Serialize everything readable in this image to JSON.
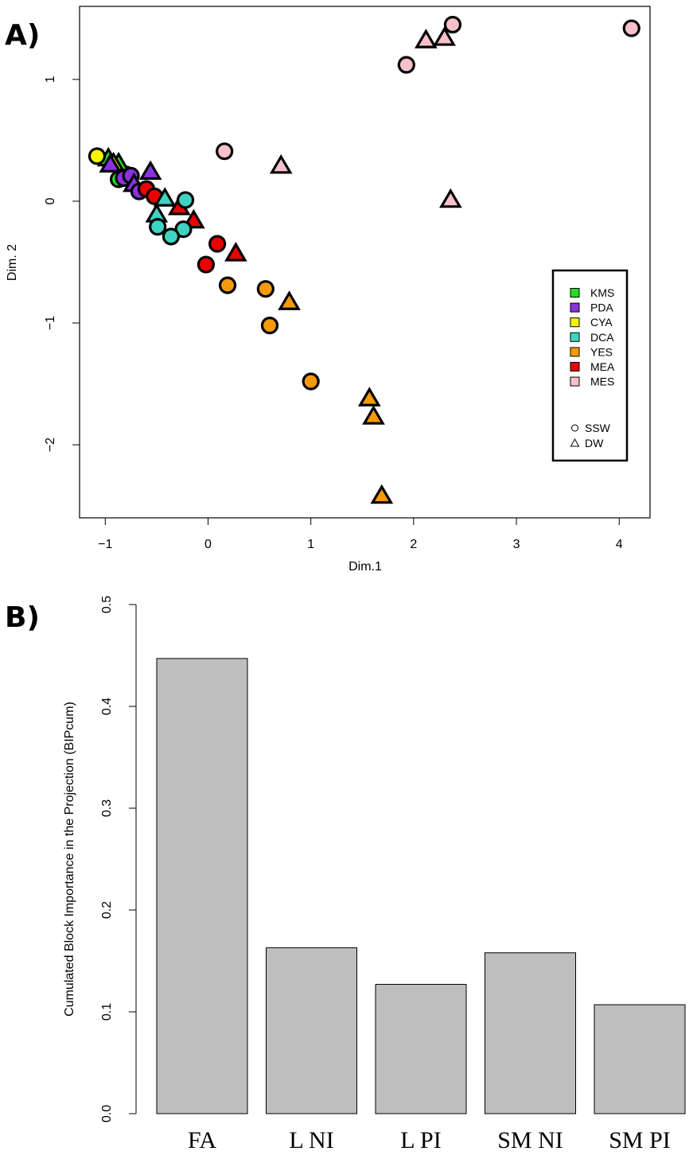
{
  "panels": {
    "a": "A)",
    "b": "B)"
  },
  "chart_data": [
    {
      "type": "scatter",
      "xlabel": "Dim.1",
      "ylabel": "Dim. 2",
      "xlim": [
        -1.25,
        4.3
      ],
      "ylim": [
        -2.6,
        1.6
      ],
      "xticks": [
        -1,
        0,
        1,
        2,
        3,
        4
      ],
      "xtick_labels": [
        "−1",
        "0",
        "1",
        "2",
        "3",
        "4"
      ],
      "yticks": [
        -2,
        -1,
        0,
        1
      ],
      "ytick_labels": [
        "−2",
        "−1",
        "0",
        "1"
      ],
      "grid": false,
      "legend_position": "right",
      "group_legend": [
        {
          "name": "KMS",
          "color": "#22dd22"
        },
        {
          "name": "PDA",
          "color": "#8833dd"
        },
        {
          "name": "CYA",
          "color": "#f5f500"
        },
        {
          "name": "DCA",
          "color": "#3fd3c3"
        },
        {
          "name": "YES",
          "color": "#f59a0a"
        },
        {
          "name": "MEA",
          "color": "#ee0000"
        },
        {
          "name": "MES",
          "color": "#f8c0c8"
        }
      ],
      "shape_legend": [
        {
          "name": "SSW",
          "shape": "circle"
        },
        {
          "name": "DW",
          "shape": "triangle"
        }
      ],
      "points": [
        {
          "group": "KMS",
          "shape": "circle",
          "x": -0.87,
          "y": 0.18
        },
        {
          "group": "KMS",
          "shape": "circle",
          "x": -0.8,
          "y": 0.22
        },
        {
          "group": "KMS",
          "shape": "triangle",
          "x": -0.97,
          "y": 0.35
        },
        {
          "group": "KMS",
          "shape": "triangle",
          "x": -0.87,
          "y": 0.31
        },
        {
          "group": "CYA",
          "shape": "circle",
          "x": -1.08,
          "y": 0.37
        },
        {
          "group": "CYA",
          "shape": "triangle",
          "x": -0.92,
          "y": 0.31
        },
        {
          "group": "PDA",
          "shape": "triangle",
          "x": -0.95,
          "y": 0.3
        },
        {
          "group": "PDA",
          "shape": "circle",
          "x": -0.82,
          "y": 0.19
        },
        {
          "group": "PDA",
          "shape": "circle",
          "x": -0.75,
          "y": 0.21
        },
        {
          "group": "PDA",
          "shape": "triangle",
          "x": -0.72,
          "y": 0.14
        },
        {
          "group": "PDA",
          "shape": "circle",
          "x": -0.67,
          "y": 0.08
        },
        {
          "group": "PDA",
          "shape": "triangle",
          "x": -0.56,
          "y": 0.24
        },
        {
          "group": "MEA",
          "shape": "circle",
          "x": -0.6,
          "y": 0.1
        },
        {
          "group": "MEA",
          "shape": "circle",
          "x": -0.52,
          "y": 0.04
        },
        {
          "group": "MEA",
          "shape": "triangle",
          "x": -0.28,
          "y": -0.05
        },
        {
          "group": "MEA",
          "shape": "triangle",
          "x": -0.14,
          "y": -0.16
        },
        {
          "group": "MEA",
          "shape": "circle",
          "x": 0.09,
          "y": -0.35
        },
        {
          "group": "MEA",
          "shape": "triangle",
          "x": 0.27,
          "y": -0.43
        },
        {
          "group": "MEA",
          "shape": "circle",
          "x": -0.02,
          "y": -0.52
        },
        {
          "group": "DCA",
          "shape": "triangle",
          "x": -0.42,
          "y": 0.02
        },
        {
          "group": "DCA",
          "shape": "circle",
          "x": -0.22,
          "y": 0.01
        },
        {
          "group": "DCA",
          "shape": "triangle",
          "x": -0.5,
          "y": -0.11
        },
        {
          "group": "DCA",
          "shape": "circle",
          "x": -0.49,
          "y": -0.21
        },
        {
          "group": "DCA",
          "shape": "circle",
          "x": -0.24,
          "y": -0.23
        },
        {
          "group": "DCA",
          "shape": "circle",
          "x": -0.36,
          "y": -0.29
        },
        {
          "group": "YES",
          "shape": "circle",
          "x": 0.19,
          "y": -0.69
        },
        {
          "group": "YES",
          "shape": "circle",
          "x": 0.56,
          "y": -0.72
        },
        {
          "group": "YES",
          "shape": "triangle",
          "x": 0.79,
          "y": -0.83
        },
        {
          "group": "YES",
          "shape": "circle",
          "x": 0.6,
          "y": -1.02
        },
        {
          "group": "YES",
          "shape": "circle",
          "x": 1.0,
          "y": -1.48
        },
        {
          "group": "YES",
          "shape": "triangle",
          "x": 1.57,
          "y": -1.62
        },
        {
          "group": "YES",
          "shape": "triangle",
          "x": 1.61,
          "y": -1.77
        },
        {
          "group": "YES",
          "shape": "triangle",
          "x": 1.69,
          "y": -2.42
        },
        {
          "group": "MES",
          "shape": "circle",
          "x": 0.16,
          "y": 0.41
        },
        {
          "group": "MES",
          "shape": "triangle",
          "x": 0.71,
          "y": 0.29
        },
        {
          "group": "MES",
          "shape": "triangle",
          "x": 2.36,
          "y": 0.01
        },
        {
          "group": "MES",
          "shape": "circle",
          "x": 1.93,
          "y": 1.12
        },
        {
          "group": "MES",
          "shape": "triangle",
          "x": 2.12,
          "y": 1.32
        },
        {
          "group": "MES",
          "shape": "triangle",
          "x": 2.3,
          "y": 1.34
        },
        {
          "group": "MES",
          "shape": "circle",
          "x": 2.38,
          "y": 1.45
        },
        {
          "group": "MES",
          "shape": "circle",
          "x": 4.12,
          "y": 1.42
        }
      ]
    },
    {
      "type": "bar",
      "ylabel": "Cumulated Block Importance in the Projection (BIPcum)",
      "xlabel": "",
      "ylim": [
        0,
        0.5
      ],
      "yticks": [
        0.0,
        0.1,
        0.2,
        0.3,
        0.4,
        0.5
      ],
      "ytick_labels": [
        "0.0",
        "0.1",
        "0.2",
        "0.3",
        "0.4",
        "0.5"
      ],
      "categories": [
        "FA",
        "L NI",
        "L PI",
        "SM NI",
        "SM PI"
      ],
      "values": [
        0.447,
        0.163,
        0.127,
        0.158,
        0.107
      ],
      "bar_color": "#bebebe",
      "grid": false
    }
  ]
}
